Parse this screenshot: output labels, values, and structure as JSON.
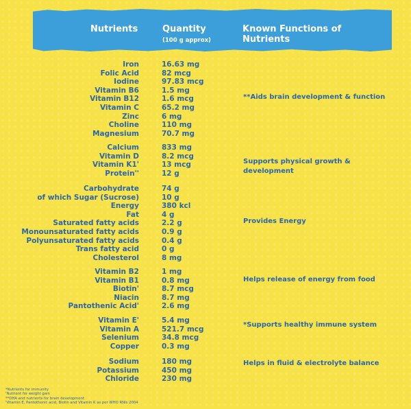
{
  "header": {
    "nutrients": "Nutrients",
    "quantity": "Quantity",
    "quantity_sub": "(100 g approx)",
    "functions": "Known Functions of Nutrients"
  },
  "groups": [
    {
      "rows": [
        {
          "name": "Iron",
          "qty": "16.63 mg"
        },
        {
          "name": "Folic Acid",
          "qty": "82 mcg"
        },
        {
          "name": "Iodine",
          "qty": "97.83 mcg"
        },
        {
          "name": "Vitamin B6",
          "qty": "1.5 mg"
        },
        {
          "name": "Vitamin B12",
          "qty": "1.6 mcg"
        },
        {
          "name": "Vitamin C",
          "qty": "65.2 mg"
        },
        {
          "name": "Zinc",
          "qty": "6 mg"
        },
        {
          "name": "Choline",
          "qty": "110 mg"
        },
        {
          "name": "Magnesium",
          "qty": "70.7 mg"
        }
      ],
      "function": "**Aids brain development & function"
    },
    {
      "rows": [
        {
          "name": "Calcium",
          "qty": "833 mg"
        },
        {
          "name": "Vitamin D",
          "qty": "8.2 mcg"
        },
        {
          "name": "Vitamin K1'",
          "qty": "13 mcg"
        },
        {
          "name": "Protein''",
          "qty": "12 g"
        }
      ],
      "function": "Supports physical growth & development"
    },
    {
      "rows": [
        {
          "name": "Carbohydrate",
          "qty": "74 g"
        },
        {
          "name": "of which Sugar (Sucrose)",
          "qty": "10 g"
        },
        {
          "name": "Energy",
          "qty": "380 kcl"
        },
        {
          "name": "Fat",
          "qty": "4 g"
        },
        {
          "name": "Saturated fatty acids",
          "qty": "2.2 g"
        },
        {
          "name": "Monounsaturated fatty acids",
          "qty": "0.9 g"
        },
        {
          "name": "Polyunsaturated fatty acids",
          "qty": "0.4 g"
        },
        {
          "name": "Trans fatty acid",
          "qty": "0 g"
        },
        {
          "name": "Cholesterol",
          "qty": "8 mg"
        }
      ],
      "function": "Provides Energy"
    },
    {
      "rows": [
        {
          "name": "Vitamin B2",
          "qty": "1 mg"
        },
        {
          "name": "Vitamin B1",
          "qty": "0.8 mg"
        },
        {
          "name": "Biotin'",
          "qty": "8.7 mcg"
        },
        {
          "name": "Niacin",
          "qty": "8.7 mg"
        },
        {
          "name": "Pantothenic Acid'",
          "qty": "2.6 mg"
        }
      ],
      "function": "Helps release of energy from food"
    },
    {
      "rows": [
        {
          "name": "Vitamin E'",
          "qty": "5.4 mg"
        },
        {
          "name": "Vitamin A",
          "qty": "521.7 mcg"
        },
        {
          "name": "Selenium",
          "qty": "34.8 mcg"
        },
        {
          "name": "Copper",
          "qty": "0.3 mg"
        }
      ],
      "function": "*Supports healthy immune system"
    },
    {
      "rows": [
        {
          "name": "Sodium",
          "qty": "180 mg"
        },
        {
          "name": "Potassium",
          "qty": "450 mg"
        },
        {
          "name": "Chloride",
          "qty": "230 mg"
        }
      ],
      "function": "Helps in fluid & electrolyte balance"
    }
  ],
  "footnotes": [
    "*Nutrients for immunity",
    "'Nutrient for weight gain",
    "**DHA and nutrients for brain development",
    "'Vitamin E, Pantothenic acid, Biotin and Vitamin K as per WHO RNIs 2004"
  ]
}
